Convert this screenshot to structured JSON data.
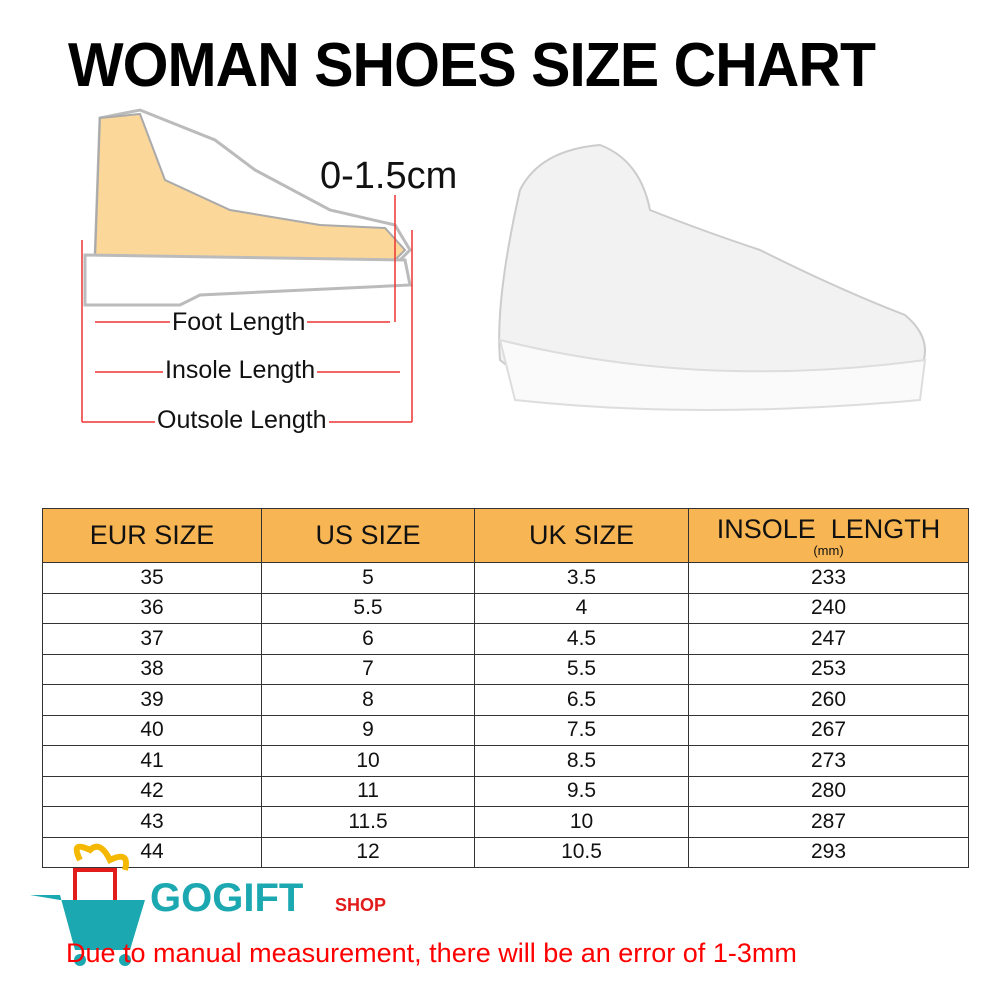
{
  "title": "WOMAN SHOES SIZE CHART",
  "diagram": {
    "gap_label": "0-1.5cm",
    "foot_length": "Foot Length",
    "insole_length": "Insole Length",
    "outsole_length": "Outsole Length"
  },
  "table": {
    "headers": [
      "EUR SIZE",
      "US SIZE",
      "UK SIZE",
      "INSOLE  LENGTH"
    ],
    "unit": "(mm)",
    "header_color": "#f8b553",
    "rows": [
      [
        "35",
        "5",
        "3.5",
        "233"
      ],
      [
        "36",
        "5.5",
        "4",
        "240"
      ],
      [
        "37",
        "6",
        "4.5",
        "247"
      ],
      [
        "38",
        "7",
        "5.5",
        "253"
      ],
      [
        "39",
        "8",
        "6.5",
        "260"
      ],
      [
        "40",
        "9",
        "7.5",
        "267"
      ],
      [
        "41",
        "10",
        "8.5",
        "273"
      ],
      [
        "42",
        "11",
        "9.5",
        "280"
      ],
      [
        "43",
        "11.5",
        "10",
        "287"
      ],
      [
        "44",
        "12",
        "10.5",
        "293"
      ]
    ]
  },
  "logo": {
    "name": "GOGIFT",
    "sub": "SHOP"
  },
  "note": "Due to manual measurement, there will be an error of 1-3mm"
}
